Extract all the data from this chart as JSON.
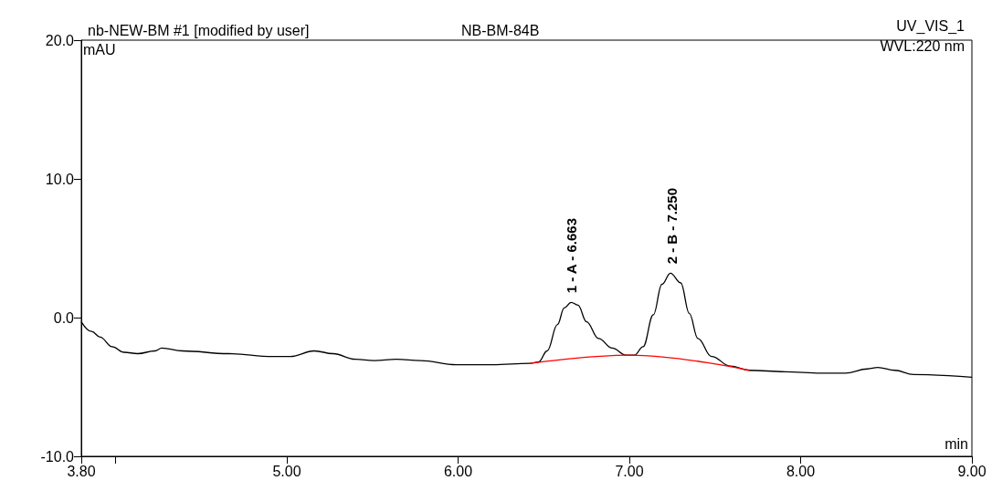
{
  "chart_data": {
    "type": "line",
    "title": "nb-NEW-BM #1 [modified by user]",
    "subtitle": "NB-BM-84B",
    "xlabel": "min",
    "ylabel": "mAU",
    "annotations": [
      "UV_VIS_1",
      "WVL:220 nm",
      {
        "text": "1 - A - 6.663",
        "x": 6.663,
        "y": 1.1
      },
      {
        "text": "2 - B - 7.250",
        "x": 7.25,
        "y": 3.2
      }
    ],
    "xlim": [
      3.8,
      9.0
    ],
    "ylim": [
      -10,
      20
    ],
    "xticks": [
      {
        "value": 3.8,
        "label": "3.80"
      },
      {
        "value": 4.0,
        "label": null
      },
      {
        "value": 5,
        "label": "5.00"
      },
      {
        "value": 6,
        "label": "6.00"
      },
      {
        "value": 7,
        "label": "7.00"
      },
      {
        "value": 8,
        "label": "8.00"
      },
      {
        "value": 9,
        "label": "9.00"
      }
    ],
    "yticks": [
      {
        "value": -10,
        "label": "-10.0"
      },
      {
        "value": 0,
        "label": "0.0"
      },
      {
        "value": 10,
        "label": "10.0"
      },
      {
        "value": 20,
        "label": "20.0"
      }
    ],
    "grid": false,
    "marker": "none",
    "line_style": "solid",
    "series": [
      {
        "color": "#000000",
        "x": [
          3.8,
          3.86,
          3.91,
          3.98,
          4.05,
          4.13,
          4.23,
          4.27,
          4.39,
          4.66,
          4.92,
          5.02,
          5.16,
          5.27,
          5.4,
          5.51,
          5.64,
          5.78,
          5.99,
          6.2,
          6.42,
          6.47,
          6.52,
          6.58,
          6.62,
          6.66,
          6.7,
          6.75,
          6.82,
          6.9,
          6.98,
          7.03,
          7.08,
          7.14,
          7.19,
          7.24,
          7.3,
          7.35,
          7.4,
          7.48,
          7.59,
          7.7,
          7.91,
          8.12,
          8.26,
          8.39,
          8.45,
          8.55,
          8.66,
          9.0
        ],
        "values": [
          -0.3,
          -1.0,
          -1.4,
          -2.1,
          -2.5,
          -2.6,
          -2.4,
          -2.2,
          -2.4,
          -2.6,
          -2.8,
          -2.8,
          -2.4,
          -2.6,
          -3.0,
          -3.1,
          -3.0,
          -3.1,
          -3.4,
          -3.4,
          -3.3,
          -3.2,
          -2.4,
          -0.5,
          0.7,
          1.1,
          0.9,
          -0.3,
          -1.5,
          -2.2,
          -2.7,
          -2.7,
          -2.1,
          0.2,
          2.4,
          3.2,
          2.5,
          0.3,
          -1.5,
          -2.8,
          -3.5,
          -3.8,
          -3.9,
          -4.0,
          -4.0,
          -3.7,
          -3.6,
          -3.8,
          -4.1,
          -4.3
        ]
      },
      {
        "color": "#ff0000",
        "x": [
          6.42,
          7.0,
          7.7
        ],
        "values": [
          -3.3,
          -2.7,
          -3.8
        ]
      }
    ]
  }
}
